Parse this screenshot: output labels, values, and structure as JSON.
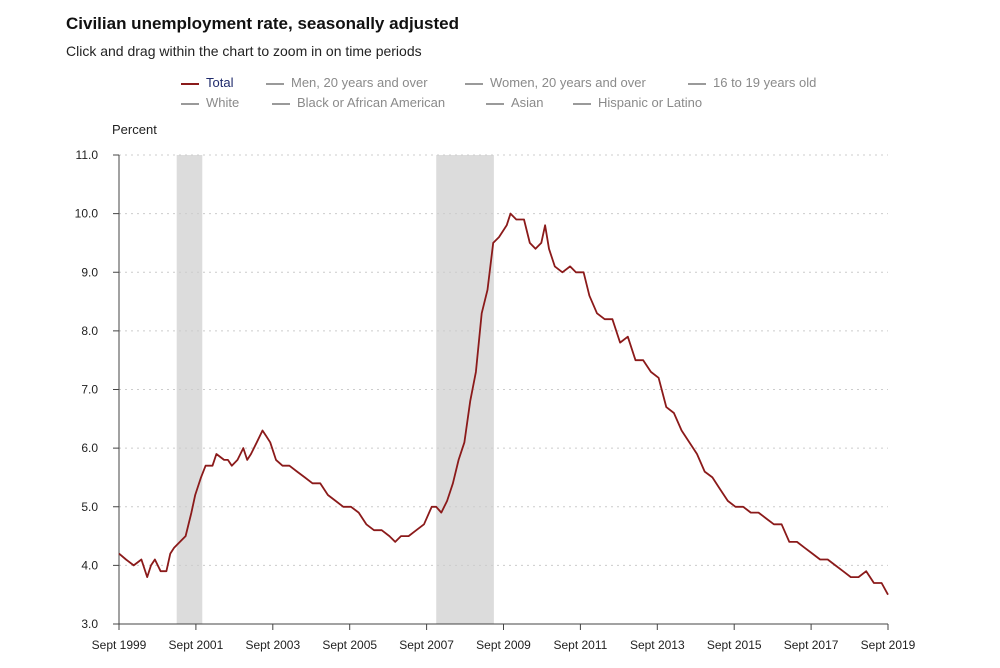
{
  "title": "Civilian unemployment rate, seasonally adjusted",
  "subtitle": "Click and drag within the chart to zoom in on time periods",
  "legend": {
    "items": [
      {
        "label": "Total",
        "active": true
      },
      {
        "label": "Men, 20 years and over",
        "active": false
      },
      {
        "label": "Women, 20 years and over",
        "active": false
      },
      {
        "label": "16 to 19 years old",
        "active": false
      },
      {
        "label": "White",
        "active": false
      },
      {
        "label": "Black or African American",
        "active": false
      },
      {
        "label": "Asian",
        "active": false
      },
      {
        "label": "Hispanic or Latino",
        "active": false
      }
    ]
  },
  "colors": {
    "series": "#8b1a1a",
    "recession": "#dcdcdc",
    "grid": "#cccccc",
    "axis": "#444444"
  },
  "chart_data": {
    "type": "line",
    "title": "Civilian unemployment rate, seasonally adjusted",
    "ylabel": "Percent",
    "xlabel": "",
    "ylim": [
      3.0,
      11.0
    ],
    "yticks": [
      "3.0",
      "4.0",
      "5.0",
      "6.0",
      "7.0",
      "8.0",
      "9.0",
      "10.0",
      "11.0"
    ],
    "xlim": [
      1999.667,
      2019.667
    ],
    "xticks": [
      {
        "label": "Sept 1999",
        "x": 1999.667
      },
      {
        "label": "Sept 2001",
        "x": 2001.667
      },
      {
        "label": "Sept 2003",
        "x": 2003.667
      },
      {
        "label": "Sept 2005",
        "x": 2005.667
      },
      {
        "label": "Sept 2007",
        "x": 2007.667
      },
      {
        "label": "Sept 2009",
        "x": 2009.667
      },
      {
        "label": "Sept 2011",
        "x": 2011.667
      },
      {
        "label": "Sept 2013",
        "x": 2013.667
      },
      {
        "label": "Sept 2015",
        "x": 2015.667
      },
      {
        "label": "Sept 2017",
        "x": 2017.667
      },
      {
        "label": "Sept 2019",
        "x": 2019.667
      }
    ],
    "recessions": [
      {
        "start": 2001.167,
        "end": 2001.833
      },
      {
        "start": 2007.917,
        "end": 2009.417
      }
    ],
    "grid": true,
    "series": [
      {
        "name": "Total",
        "x": [
          1999.667,
          1999.85,
          2000.05,
          2000.25,
          2000.4,
          2000.5,
          2000.6,
          2000.75,
          2000.9,
          2001.0,
          2001.1,
          2001.25,
          2001.4,
          2001.55,
          2001.65,
          2001.8,
          2001.92,
          2002.0,
          2002.1,
          2002.2,
          2002.4,
          2002.5,
          2002.6,
          2002.75,
          2002.9,
          2003.0,
          2003.1,
          2003.25,
          2003.4,
          2003.5,
          2003.6,
          2003.75,
          2003.92,
          2004.1,
          2004.3,
          2004.5,
          2004.7,
          2004.9,
          2005.1,
          2005.3,
          2005.5,
          2005.7,
          2005.9,
          2006.1,
          2006.3,
          2006.5,
          2006.7,
          2006.85,
          2007.0,
          2007.2,
          2007.4,
          2007.6,
          2007.8,
          2007.917,
          2008.05,
          2008.2,
          2008.35,
          2008.5,
          2008.65,
          2008.8,
          2008.95,
          2009.1,
          2009.25,
          2009.4,
          2009.55,
          2009.75,
          2009.85,
          2010.0,
          2010.2,
          2010.35,
          2010.5,
          2010.65,
          2010.75,
          2010.85,
          2011.0,
          2011.2,
          2011.4,
          2011.55,
          2011.75,
          2011.9,
          2012.1,
          2012.3,
          2012.5,
          2012.7,
          2012.9,
          2013.1,
          2013.3,
          2013.5,
          2013.7,
          2013.9,
          2014.1,
          2014.3,
          2014.5,
          2014.7,
          2014.9,
          2015.1,
          2015.3,
          2015.5,
          2015.7,
          2015.9,
          2016.1,
          2016.3,
          2016.5,
          2016.7,
          2016.9,
          2017.1,
          2017.3,
          2017.5,
          2017.7,
          2017.9,
          2018.1,
          2018.3,
          2018.5,
          2018.7,
          2018.9,
          2019.1,
          2019.3,
          2019.5,
          2019.667
        ],
        "values": [
          4.2,
          4.1,
          4.0,
          4.1,
          3.8,
          4.0,
          4.1,
          3.9,
          3.9,
          4.2,
          4.3,
          4.4,
          4.5,
          4.9,
          5.2,
          5.5,
          5.7,
          5.7,
          5.7,
          5.9,
          5.8,
          5.8,
          5.7,
          5.8,
          6.0,
          5.8,
          5.9,
          6.1,
          6.3,
          6.2,
          6.1,
          5.8,
          5.7,
          5.7,
          5.6,
          5.5,
          5.4,
          5.4,
          5.2,
          5.1,
          5.0,
          5.0,
          4.9,
          4.7,
          4.6,
          4.6,
          4.5,
          4.4,
          4.5,
          4.5,
          4.6,
          4.7,
          5.0,
          5.0,
          4.9,
          5.1,
          5.4,
          5.8,
          6.1,
          6.8,
          7.3,
          8.3,
          8.7,
          9.5,
          9.6,
          9.8,
          10.0,
          9.9,
          9.9,
          9.5,
          9.4,
          9.5,
          9.8,
          9.4,
          9.1,
          9.0,
          9.1,
          9.0,
          9.0,
          8.6,
          8.3,
          8.2,
          8.2,
          7.8,
          7.9,
          7.5,
          7.5,
          7.3,
          7.2,
          6.7,
          6.6,
          6.3,
          6.1,
          5.9,
          5.6,
          5.5,
          5.3,
          5.1,
          5.0,
          5.0,
          4.9,
          4.9,
          4.8,
          4.7,
          4.7,
          4.4,
          4.4,
          4.3,
          4.2,
          4.1,
          4.1,
          4.0,
          3.9,
          3.8,
          3.8,
          3.9,
          3.7,
          3.7,
          3.5
        ]
      }
    ]
  }
}
